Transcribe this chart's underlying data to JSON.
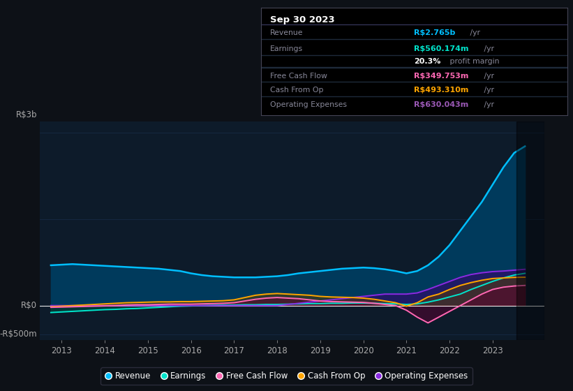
{
  "bg_color": "#0d1117",
  "plot_bg_color": "#0d1b2a",
  "grid_color": "#1e3a5f",
  "text_color": "#aaaaaa",
  "y_label_top": "R$3b",
  "y_label_zero": "R$0",
  "y_label_bot": "-R$500m",
  "ylim": [
    -600,
    3200
  ],
  "xlim_start": 2012.5,
  "xlim_end": 2024.2,
  "xticks": [
    2013,
    2014,
    2015,
    2016,
    2017,
    2018,
    2019,
    2020,
    2021,
    2022,
    2023
  ],
  "info_box": {
    "date": "Sep 30 2023",
    "rows": [
      {
        "label": "Revenue",
        "value": "R$2.765b",
        "unit": " /yr",
        "value_color": "#00bfff"
      },
      {
        "label": "Earnings",
        "value": "R$560.174m",
        "unit": " /yr",
        "value_color": "#00e5cc"
      },
      {
        "label": "",
        "value": "20.3%",
        "unit": " profit margin",
        "value_color": "#ffffff"
      },
      {
        "label": "Free Cash Flow",
        "value": "R$349.753m",
        "unit": " /yr",
        "value_color": "#ff69b4"
      },
      {
        "label": "Cash From Op",
        "value": "R$493.310m",
        "unit": " /yr",
        "value_color": "#ffa500"
      },
      {
        "label": "Operating Expenses",
        "value": "R$630.043m",
        "unit": " /yr",
        "value_color": "#9b59b6"
      }
    ]
  },
  "series": {
    "revenue": {
      "color": "#00bfff",
      "fill_color": "#003a5c",
      "label": "Revenue",
      "x": [
        2012.75,
        2013.0,
        2013.25,
        2013.5,
        2013.75,
        2014.0,
        2014.25,
        2014.5,
        2014.75,
        2015.0,
        2015.25,
        2015.5,
        2015.75,
        2016.0,
        2016.25,
        2016.5,
        2016.75,
        2017.0,
        2017.25,
        2017.5,
        2017.75,
        2018.0,
        2018.25,
        2018.5,
        2018.75,
        2019.0,
        2019.25,
        2019.5,
        2019.75,
        2020.0,
        2020.25,
        2020.5,
        2020.75,
        2021.0,
        2021.25,
        2021.5,
        2021.75,
        2022.0,
        2022.25,
        2022.5,
        2022.75,
        2023.0,
        2023.25,
        2023.5,
        2023.75
      ],
      "y": [
        700,
        710,
        720,
        710,
        700,
        690,
        680,
        670,
        660,
        650,
        640,
        620,
        600,
        560,
        530,
        510,
        500,
        490,
        490,
        490,
        500,
        510,
        530,
        560,
        580,
        600,
        620,
        640,
        650,
        660,
        650,
        630,
        600,
        560,
        600,
        700,
        850,
        1050,
        1300,
        1550,
        1800,
        2100,
        2400,
        2650,
        2765
      ]
    },
    "earnings": {
      "color": "#00e5cc",
      "label": "Earnings",
      "x": [
        2012.75,
        2013.0,
        2013.25,
        2013.5,
        2013.75,
        2014.0,
        2014.25,
        2014.5,
        2014.75,
        2015.0,
        2015.25,
        2015.5,
        2015.75,
        2016.0,
        2016.25,
        2016.5,
        2016.75,
        2017.0,
        2017.25,
        2017.5,
        2017.75,
        2018.0,
        2018.25,
        2018.5,
        2018.75,
        2019.0,
        2019.25,
        2019.5,
        2019.75,
        2020.0,
        2020.25,
        2020.5,
        2020.75,
        2021.0,
        2021.25,
        2021.5,
        2021.75,
        2022.0,
        2022.25,
        2022.5,
        2022.75,
        2023.0,
        2023.25,
        2023.5,
        2023.75
      ],
      "y": [
        -120,
        -110,
        -100,
        -90,
        -80,
        -70,
        -65,
        -55,
        -50,
        -40,
        -30,
        -20,
        -10,
        -5,
        0,
        5,
        10,
        10,
        15,
        15,
        20,
        20,
        25,
        30,
        35,
        35,
        40,
        40,
        45,
        45,
        40,
        35,
        30,
        20,
        30,
        60,
        100,
        150,
        200,
        280,
        350,
        420,
        480,
        530,
        560
      ]
    },
    "free_cash_flow": {
      "color": "#ff69b4",
      "label": "Free Cash Flow",
      "x": [
        2012.75,
        2013.0,
        2013.25,
        2013.5,
        2013.75,
        2014.0,
        2014.25,
        2014.5,
        2014.75,
        2015.0,
        2015.25,
        2015.5,
        2015.75,
        2016.0,
        2016.25,
        2016.5,
        2016.75,
        2017.0,
        2017.25,
        2017.5,
        2017.75,
        2018.0,
        2018.25,
        2018.5,
        2018.75,
        2019.0,
        2019.25,
        2019.5,
        2019.75,
        2020.0,
        2020.25,
        2020.5,
        2020.75,
        2021.0,
        2021.25,
        2021.5,
        2021.75,
        2022.0,
        2022.25,
        2022.5,
        2022.75,
        2023.0,
        2023.25,
        2023.5,
        2023.75
      ],
      "y": [
        -30,
        -25,
        -20,
        -15,
        -10,
        -5,
        0,
        10,
        15,
        15,
        20,
        25,
        25,
        25,
        30,
        35,
        40,
        50,
        80,
        110,
        130,
        140,
        130,
        120,
        100,
        80,
        70,
        65,
        60,
        55,
        40,
        20,
        0,
        -80,
        -200,
        -300,
        -200,
        -100,
        0,
        100,
        200,
        280,
        320,
        340,
        350
      ]
    },
    "cash_from_op": {
      "color": "#ffa500",
      "label": "Cash From Op",
      "x": [
        2012.75,
        2013.0,
        2013.25,
        2013.5,
        2013.75,
        2014.0,
        2014.25,
        2014.5,
        2014.75,
        2015.0,
        2015.25,
        2015.5,
        2015.75,
        2016.0,
        2016.25,
        2016.5,
        2016.75,
        2017.0,
        2017.25,
        2017.5,
        2017.75,
        2018.0,
        2018.25,
        2018.5,
        2018.75,
        2019.0,
        2019.25,
        2019.5,
        2019.75,
        2020.0,
        2020.25,
        2020.5,
        2020.75,
        2021.0,
        2021.25,
        2021.5,
        2021.75,
        2022.0,
        2022.25,
        2022.5,
        2022.75,
        2023.0,
        2023.25,
        2023.5,
        2023.75
      ],
      "y": [
        -20,
        -10,
        0,
        10,
        20,
        30,
        40,
        50,
        55,
        60,
        65,
        65,
        70,
        70,
        75,
        80,
        85,
        100,
        140,
        180,
        200,
        210,
        200,
        190,
        180,
        160,
        150,
        145,
        140,
        130,
        110,
        80,
        50,
        -10,
        50,
        150,
        200,
        280,
        350,
        400,
        440,
        470,
        480,
        490,
        493
      ]
    },
    "operating_expenses": {
      "color": "#8a2be2",
      "label": "Operating Expenses",
      "x": [
        2012.75,
        2013.0,
        2013.25,
        2013.5,
        2013.75,
        2014.0,
        2014.25,
        2014.5,
        2014.75,
        2015.0,
        2015.25,
        2015.5,
        2015.75,
        2016.0,
        2016.25,
        2016.5,
        2016.75,
        2017.0,
        2017.25,
        2017.5,
        2017.75,
        2018.0,
        2018.25,
        2018.5,
        2018.75,
        2019.0,
        2019.25,
        2019.5,
        2019.75,
        2020.0,
        2020.25,
        2020.5,
        2020.75,
        2021.0,
        2021.25,
        2021.5,
        2021.75,
        2022.0,
        2022.25,
        2022.5,
        2022.75,
        2023.0,
        2023.25,
        2023.5,
        2023.75
      ],
      "y": [
        0,
        0,
        0,
        0,
        0,
        0,
        0,
        0,
        0,
        0,
        0,
        0,
        0,
        0,
        0,
        0,
        0,
        0,
        0,
        0,
        0,
        0,
        20,
        40,
        60,
        80,
        100,
        120,
        140,
        160,
        180,
        200,
        200,
        200,
        220,
        280,
        350,
        420,
        490,
        540,
        570,
        590,
        600,
        615,
        630
      ]
    }
  },
  "legend_items": [
    {
      "label": "Revenue",
      "color": "#00bfff"
    },
    {
      "label": "Earnings",
      "color": "#00e5cc"
    },
    {
      "label": "Free Cash Flow",
      "color": "#ff69b4"
    },
    {
      "label": "Cash From Op",
      "color": "#ffa500"
    },
    {
      "label": "Operating Expenses",
      "color": "#8a2be2"
    }
  ]
}
